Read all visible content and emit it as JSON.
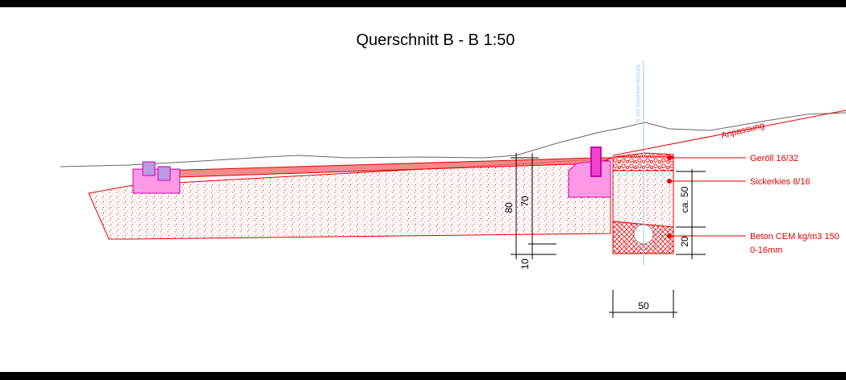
{
  "title": "Querschnitt B - B 1:50",
  "labels": {
    "adjustment": "Anpassung",
    "pipe": "PE 160 Sickerwasserleitung",
    "gravel": "Geröll 16/32",
    "drain_gravel": "Sickerkies 8/16",
    "concrete": "Beton CEM kg/m3 150",
    "concrete_grain": "0-16mm"
  },
  "dimensions": {
    "depth_total": "80",
    "depth_base": "70",
    "offset": "10",
    "trench_depth": "ca. 50",
    "concrete_height": "20",
    "trench_width": "50"
  }
}
